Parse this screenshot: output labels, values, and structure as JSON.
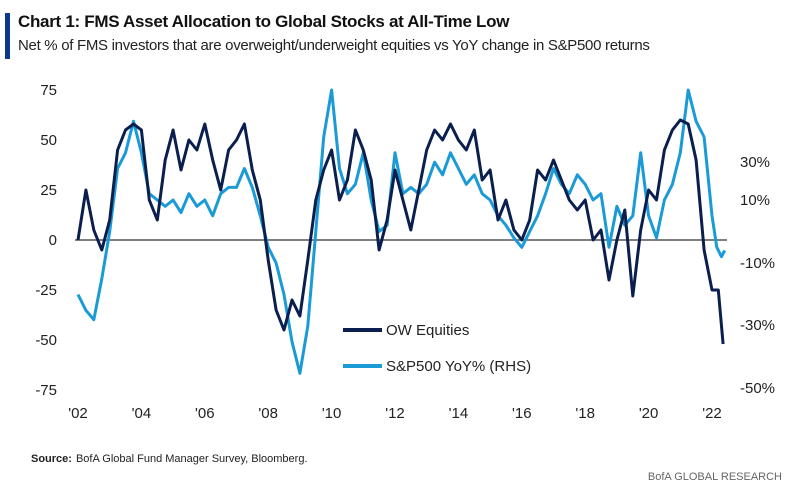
{
  "header": {
    "title": "Chart 1: FMS Asset Allocation to Global Stocks at All-Time Low",
    "subtitle": "Net % of FMS investors that are overweight/underweight equities vs YoY change in S&P500 returns"
  },
  "footer": {
    "source_label": "Source:",
    "source_text": "BofA Global Fund Manager Survey, Bloomberg.",
    "brand": "BofA GLOBAL RESEARCH"
  },
  "chart_data": {
    "type": "line",
    "title": "Chart 1: FMS Asset Allocation to Global Stocks at All-Time Low",
    "xlabel": "",
    "ylabel": "",
    "x_ticks": [
      "'02",
      "'04",
      "'06",
      "'08",
      "'10",
      "'12",
      "'14",
      "'16",
      "'18",
      "'20",
      "'22"
    ],
    "x_range": [
      2002,
      2022.6
    ],
    "y_left": {
      "ticks": [
        "75",
        "50",
        "25",
        "0",
        "-25",
        "-50",
        "-75"
      ],
      "ylim": [
        -75,
        75
      ]
    },
    "y_right": {
      "ticks": [
        "30%",
        "10%",
        "-10%",
        "-30%",
        "-50%"
      ],
      "ylim": [
        -50,
        45
      ]
    },
    "legend_position": "bottom-center",
    "zero_line": true,
    "colors": {
      "ow": "#0b1f4f",
      "spx": "#1a9ad6"
    },
    "series": [
      {
        "name": "OW Equities",
        "axis": "left",
        "x": [
          2002,
          2002.25,
          2002.5,
          2002.75,
          2003,
          2003.25,
          2003.5,
          2003.75,
          2004,
          2004.25,
          2004.5,
          2004.75,
          2005,
          2005.25,
          2005.5,
          2005.75,
          2006,
          2006.25,
          2006.5,
          2006.75,
          2007,
          2007.25,
          2007.5,
          2007.75,
          2008,
          2008.25,
          2008.5,
          2008.75,
          2009,
          2009.25,
          2009.5,
          2009.75,
          2010,
          2010.25,
          2010.5,
          2010.75,
          2011,
          2011.25,
          2011.5,
          2011.75,
          2012,
          2012.25,
          2012.5,
          2012.75,
          2013,
          2013.25,
          2013.5,
          2013.75,
          2014,
          2014.25,
          2014.5,
          2014.75,
          2015,
          2015.25,
          2015.5,
          2015.75,
          2016,
          2016.25,
          2016.5,
          2016.75,
          2017,
          2017.25,
          2017.5,
          2017.75,
          2018,
          2018.25,
          2018.5,
          2018.75,
          2019,
          2019.25,
          2019.5,
          2019.75,
          2020,
          2020.25,
          2020.5,
          2020.75,
          2021,
          2021.25,
          2021.5,
          2021.75,
          2022,
          2022.2,
          2022.35
        ],
        "values": [
          0,
          25,
          5,
          -5,
          10,
          45,
          55,
          58,
          55,
          20,
          10,
          40,
          55,
          35,
          50,
          45,
          58,
          40,
          25,
          45,
          50,
          58,
          35,
          20,
          -10,
          -35,
          -45,
          -30,
          -38,
          -10,
          20,
          35,
          45,
          20,
          30,
          55,
          45,
          30,
          -5,
          10,
          35,
          20,
          5,
          25,
          45,
          55,
          50,
          58,
          50,
          45,
          55,
          30,
          35,
          10,
          20,
          5,
          0,
          10,
          35,
          30,
          40,
          30,
          20,
          15,
          20,
          0,
          5,
          -20,
          0,
          15,
          -28,
          5,
          25,
          20,
          45,
          55,
          60,
          58,
          40,
          -5,
          -25,
          -25,
          -52
        ]
      },
      {
        "name": "S&P500 YoY% (RHS)",
        "axis": "right",
        "x": [
          2002,
          2002.25,
          2002.5,
          2002.75,
          2003,
          2003.25,
          2003.5,
          2003.75,
          2004,
          2004.25,
          2004.5,
          2004.75,
          2005,
          2005.25,
          2005.5,
          2005.75,
          2006,
          2006.25,
          2006.5,
          2006.75,
          2007,
          2007.25,
          2007.5,
          2007.75,
          2008,
          2008.25,
          2008.5,
          2008.75,
          2009,
          2009.25,
          2009.5,
          2009.75,
          2010,
          2010.25,
          2010.5,
          2010.75,
          2011,
          2011.25,
          2011.5,
          2011.75,
          2012,
          2012.25,
          2012.5,
          2012.75,
          2013,
          2013.25,
          2013.5,
          2013.75,
          2014,
          2014.25,
          2014.5,
          2014.75,
          2015,
          2015.25,
          2015.5,
          2015.75,
          2016,
          2016.25,
          2016.5,
          2016.75,
          2017,
          2017.25,
          2017.5,
          2017.75,
          2018,
          2018.25,
          2018.5,
          2018.75,
          2019,
          2019.25,
          2019.5,
          2019.75,
          2020,
          2020.25,
          2020.5,
          2020.75,
          2021,
          2021.25,
          2021.5,
          2021.75,
          2022,
          2022.15,
          2022.3,
          2022.4
        ],
        "values": [
          -20,
          -25,
          -28,
          -15,
          0,
          20,
          25,
          35,
          25,
          12,
          10,
          8,
          10,
          6,
          12,
          8,
          10,
          5,
          12,
          14,
          14,
          20,
          14,
          5,
          -5,
          -10,
          -20,
          -35,
          -45,
          -30,
          0,
          30,
          45,
          20,
          12,
          15,
          25,
          10,
          0,
          2,
          25,
          12,
          14,
          12,
          15,
          22,
          18,
          25,
          20,
          15,
          18,
          12,
          10,
          5,
          2,
          -2,
          -5,
          0,
          5,
          12,
          20,
          15,
          12,
          18,
          15,
          10,
          12,
          -5,
          8,
          2,
          5,
          25,
          5,
          -2,
          10,
          15,
          25,
          45,
          35,
          30,
          5,
          -5,
          -8,
          -6
        ]
      }
    ]
  }
}
